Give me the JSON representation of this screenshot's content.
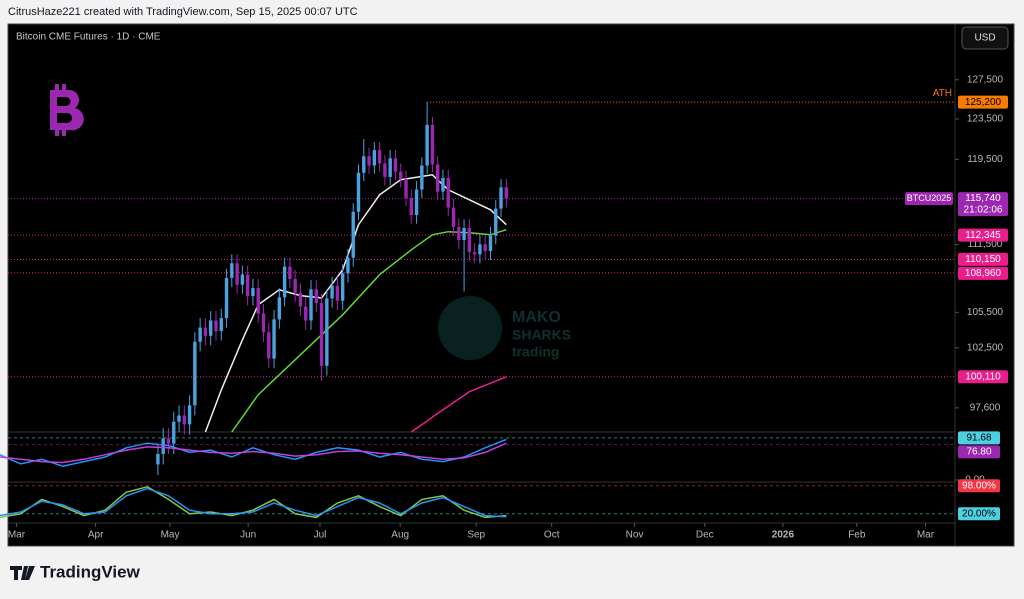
{
  "header": {
    "credit": "CitrusHaze221 created with TradingView.com, Sep 15, 2025 00:07 UTC"
  },
  "footer": {
    "brand": "TradingView"
  },
  "watermark": [
    "MAKO",
    "SHARKS",
    "trading"
  ],
  "chart_data": {
    "type": "candlestick",
    "title": "Bitcoin CME Futures · 1D · CME",
    "currency": "USD",
    "log_scale": true,
    "xlim": [
      -28.4,
      151
    ],
    "xticks": [
      {
        "value": -26.8,
        "label": "Mar"
      },
      {
        "value": -11.8,
        "label": "Apr"
      },
      {
        "value": 2.3,
        "label": "May"
      },
      {
        "value": 17.1,
        "label": "Jun"
      },
      {
        "value": 30.7,
        "label": "Jul"
      },
      {
        "value": 45.9,
        "label": "Aug"
      },
      {
        "value": 60.3,
        "label": "Sep"
      },
      {
        "value": 74.6,
        "label": "Oct"
      },
      {
        "value": 90.3,
        "label": "Nov"
      },
      {
        "value": 103.6,
        "label": "Dec"
      },
      {
        "value": 118.4,
        "label": "2026"
      },
      {
        "value": 132.4,
        "label": "Feb"
      },
      {
        "value": 145.4,
        "label": "Mar"
      }
    ],
    "ylim": [
      95700,
      131700
    ],
    "yticks": [
      {
        "value": 127500,
        "label": "127,500"
      },
      {
        "value": 123500,
        "label": "123,500"
      },
      {
        "value": 119500,
        "label": "119,500"
      },
      {
        "value": 111500,
        "label": "111,500"
      },
      {
        "value": 105500,
        "label": "105,500"
      },
      {
        "value": 102500,
        "label": "102,500"
      },
      {
        "value": 97600,
        "label": "97,600"
      }
    ],
    "up_color": "#4aa3df",
    "down_color": "#9c27b0",
    "open": [
      93200,
      94000,
      95200,
      94800,
      96500,
      97000,
      96300,
      97800,
      103000,
      104200,
      103500,
      104800,
      103900,
      105000,
      108500,
      109800,
      107900,
      108800,
      106900,
      107600,
      105400,
      103800,
      101600,
      104900,
      106800,
      109500,
      108400,
      107200,
      106000,
      104800,
      107500,
      106300,
      101000,
      106700,
      107800,
      106500,
      108900,
      110300,
      114500,
      118200,
      119800,
      118900,
      120400,
      119100,
      117800,
      119600,
      118300,
      117600,
      115800,
      114200,
      116600,
      118900,
      122900,
      119000,
      116400,
      117700,
      114900,
      113100,
      111900,
      113000,
      110800,
      110600,
      111500,
      110900,
      112300,
      114800,
      116800
    ],
    "high": [
      94800,
      96000,
      96000,
      97300,
      97800,
      97800,
      98600,
      103800,
      105000,
      105000,
      105600,
      105600,
      105800,
      109300,
      110600,
      110600,
      109600,
      109600,
      108400,
      108400,
      106200,
      104600,
      105700,
      107600,
      110300,
      110300,
      109200,
      108000,
      106800,
      108300,
      108300,
      107100,
      107500,
      108600,
      108600,
      109700,
      111100,
      115300,
      119000,
      121500,
      120600,
      121200,
      121200,
      119900,
      120400,
      120400,
      119100,
      118400,
      116600,
      117400,
      119700,
      125200,
      123700,
      119800,
      118500,
      118500,
      115700,
      113900,
      113800,
      113800,
      111600,
      112300,
      112300,
      113100,
      115600,
      117600,
      117600
    ],
    "low": [
      92400,
      93200,
      94000,
      94000,
      95700,
      95500,
      95500,
      97000,
      102200,
      102700,
      102700,
      103100,
      103100,
      104200,
      107700,
      107100,
      107100,
      106100,
      106100,
      104600,
      103000,
      100800,
      100800,
      104100,
      106000,
      107600,
      106400,
      105200,
      104000,
      104000,
      105500,
      99800,
      100200,
      105900,
      105700,
      105700,
      108100,
      109500,
      113700,
      117400,
      118100,
      118100,
      118300,
      117000,
      117000,
      117500,
      116800,
      115000,
      113400,
      113400,
      115800,
      118100,
      118200,
      115600,
      115600,
      114100,
      112300,
      111100,
      107300,
      110000,
      109800,
      109800,
      110100,
      110100,
      111500,
      114000,
      114900
    ],
    "close": [
      94000,
      95200,
      94800,
      96500,
      97000,
      96300,
      97800,
      103000,
      104200,
      103500,
      104800,
      103900,
      105000,
      108500,
      109800,
      107900,
      108800,
      106900,
      107600,
      105400,
      103800,
      101600,
      104900,
      106800,
      109500,
      108400,
      107200,
      106000,
      104800,
      107500,
      106300,
      101000,
      106700,
      107800,
      106500,
      108900,
      110300,
      114500,
      118200,
      119800,
      118900,
      120400,
      119100,
      117800,
      119600,
      118300,
      117600,
      115800,
      114200,
      116600,
      118900,
      122900,
      119000,
      116400,
      117700,
      114900,
      113100,
      111900,
      113000,
      110800,
      110600,
      111500,
      110900,
      112300,
      114800,
      116800,
      115740
    ],
    "lines": [
      {
        "color": "#eeeeee",
        "x": [
          9,
          12,
          16,
          19,
          23,
          27,
          31,
          35,
          38,
          42,
          46,
          52,
          55,
          59,
          63,
          66
        ],
        "values": [
          95700,
          99040,
          103160,
          106150,
          107450,
          106950,
          106750,
          109220,
          113300,
          116100,
          117530,
          118000,
          116570,
          115630,
          114690,
          113300
        ]
      },
      {
        "color": "#5ddc2e",
        "x": [
          14,
          19,
          27,
          35,
          42,
          48,
          52,
          55,
          59,
          63,
          66
        ],
        "values": [
          95700,
          98650,
          101910,
          105290,
          108780,
          111010,
          112380,
          112660,
          112570,
          112380,
          112840
        ]
      },
      {
        "color": "#e91e8c",
        "x": [
          48,
          54,
          59,
          66
        ],
        "values": [
          95700,
          97450,
          98890,
          100100
        ]
      }
    ],
    "price_labels": [
      {
        "value": 125200,
        "label": "125,200",
        "color": "#f57c00",
        "tag": "ATH"
      },
      {
        "value": 115740,
        "label": "115,740",
        "color": "#9c27b0",
        "tag": "BTCU2025",
        "countdown": "21:02:06"
      },
      {
        "value": 112345,
        "label": "112,345",
        "color": "#e91e8c"
      },
      {
        "value": 110150,
        "label": "110,150",
        "color": "#e91e8c"
      },
      {
        "value": 108960,
        "label": "108,960",
        "color": "#e91e8c"
      },
      {
        "value": 100110,
        "label": "100,110",
        "color": "#e91e8c"
      }
    ],
    "indicators": [
      {
        "ylim": [
          0,
          100
        ],
        "yticks": [
          {
            "value": 0,
            "label": "0.00"
          }
        ],
        "series": [
          {
            "color": "#2196f3",
            "x": [
              -30,
              -26,
              -22,
              -18,
              -14,
              -10,
              -6,
              -2,
              2,
              6,
              10,
              14,
              18,
              22,
              26,
              30,
              34,
              38,
              42,
              46,
              50,
              54,
              58,
              62,
              66
            ],
            "values": [
              55,
              35,
              45,
              30,
              40,
              50,
              70,
              80,
              75,
              60,
              65,
              50,
              70,
              55,
              45,
              60,
              70,
              65,
              50,
              60,
              45,
              40,
              50,
              70,
              88
            ]
          },
          {
            "color": "#c040e0",
            "x": [
              -30,
              -26,
              -22,
              -18,
              -14,
              -10,
              -6,
              -2,
              2,
              6,
              10,
              14,
              18,
              22,
              26,
              30,
              34,
              38,
              42,
              46,
              50,
              54,
              58,
              62,
              66
            ],
            "values": [
              50,
              45,
              40,
              38,
              45,
              55,
              65,
              72,
              70,
              65,
              60,
              58,
              62,
              58,
              52,
              55,
              62,
              63,
              58,
              55,
              50,
              45,
              48,
              60,
              80
            ]
          }
        ],
        "value_labels": [
          {
            "value": 91.68,
            "color": "#4dd0e1"
          },
          {
            "value": 76.8,
            "label": "76.80",
            "color": "#9c27b0"
          }
        ]
      },
      {
        "ylim": [
          0,
          100
        ],
        "series": [
          {
            "color": "#8bc34a",
            "x": [
              -30,
              -26,
              -22,
              -18,
              -14,
              -10,
              -6,
              -2,
              2,
              6,
              10,
              14,
              18,
              22,
              26,
              30,
              34,
              38,
              42,
              46,
              50,
              54,
              58,
              62,
              66
            ],
            "values": [
              10,
              20,
              60,
              40,
              15,
              30,
              80,
              95,
              60,
              20,
              25,
              15,
              30,
              60,
              20,
              10,
              50,
              70,
              40,
              15,
              60,
              70,
              30,
              10,
              15
            ]
          },
          {
            "color": "#2196f3",
            "x": [
              -30,
              -26,
              -22,
              -18,
              -14,
              -10,
              -6,
              -2,
              2,
              6,
              10,
              14,
              18,
              22,
              26,
              30,
              34,
              38,
              42,
              46,
              50,
              54,
              58,
              62,
              66
            ],
            "values": [
              15,
              25,
              55,
              45,
              20,
              25,
              70,
              90,
              70,
              30,
              20,
              20,
              25,
              50,
              30,
              15,
              40,
              65,
              50,
              20,
              50,
              65,
              40,
              15,
              12
            ]
          }
        ],
        "value_labels": [
          {
            "value": 98,
            "label": "98.00%",
            "color": "#f23645"
          },
          {
            "value": 20,
            "label": "20.00%",
            "color": "#4dd0e1"
          }
        ]
      }
    ]
  }
}
